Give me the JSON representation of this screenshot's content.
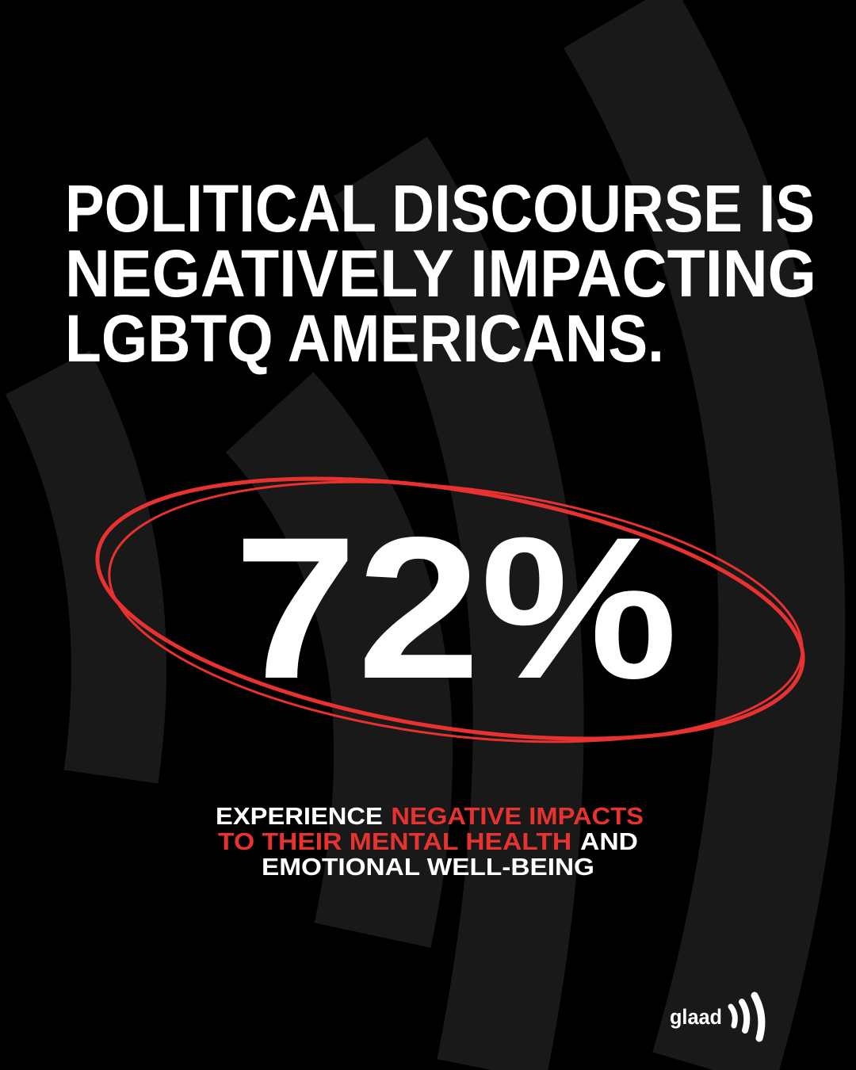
{
  "headline": {
    "lines": [
      "POLITICAL DISCOURSE IS",
      "NEGATIVELY IMPACTING",
      "LGBTQ AMERICANS."
    ]
  },
  "stat": "72%",
  "subtitle": {
    "lines": [
      {
        "text": "EXPERIENCE",
        "highlight": "NEGATIVE IMPACTS"
      },
      {
        "highlight": "TO THEIR MENTAL HEALTH",
        "text": "AND"
      },
      {
        "text": "EMOTIONAL WELL-BEING"
      }
    ]
  },
  "logo": "glaad"
}
